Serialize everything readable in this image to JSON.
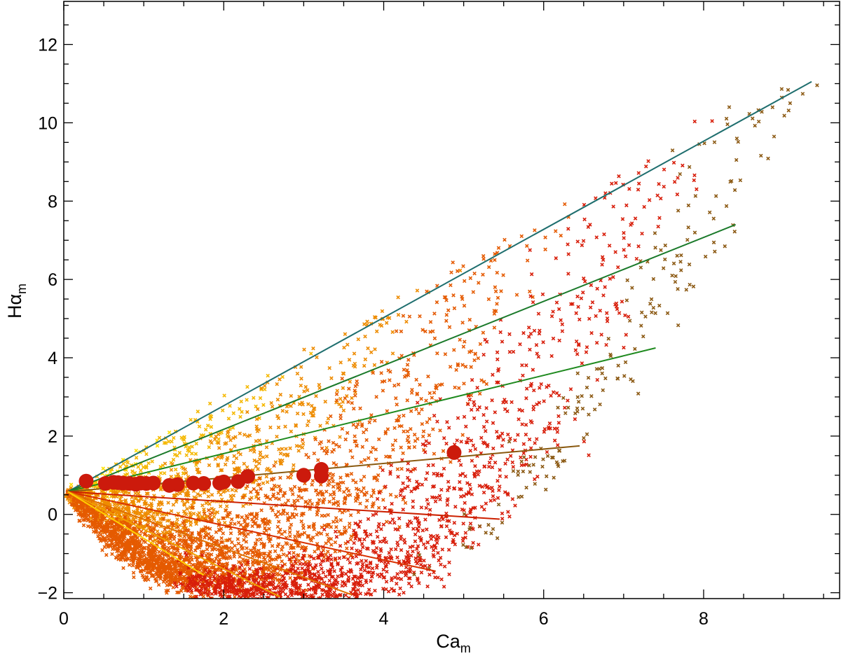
{
  "chart_data": {
    "type": "scatter",
    "xlabel": "Ca",
    "xlabel_sub": "m",
    "ylabel": "Hα",
    "ylabel_sub": "m",
    "xlim": [
      0,
      9.7
    ],
    "ylim": [
      -2.15,
      13.1
    ],
    "x_ticks": [
      0,
      2,
      4,
      6,
      8
    ],
    "x_tick_labels": [
      "0",
      "2",
      "4",
      "6",
      "8"
    ],
    "x_minor_step": 0.5,
    "y_ticks": [
      -2,
      0,
      2,
      4,
      6,
      8,
      10,
      12
    ],
    "y_tick_labels": [
      "−2",
      "0",
      "2",
      "4",
      "6",
      "8",
      "10",
      "12"
    ],
    "y_minor_step": 0.5,
    "grid": false,
    "legend": "none",
    "scatter_band_colors": [
      "#FFE000",
      "#F5B800",
      "#EE8C00",
      "#E55A00",
      "#D81E0A",
      "#8C5A14",
      "#238C23",
      "#0C8C3C",
      "#136E60"
    ],
    "fit_line_origin": [
      0.05,
      0.58
    ],
    "fit_lines": [
      {
        "x_end": 9.35,
        "y_end": 11.05,
        "color": "#1E6E6E"
      },
      {
        "x_end": 8.4,
        "y_end": 7.4,
        "color": "#1A7A2A"
      },
      {
        "x_end": 7.4,
        "y_end": 4.25,
        "color": "#1F8A1F"
      },
      {
        "x_end": 6.45,
        "y_end": 1.75,
        "color": "#8A5A10"
      },
      {
        "x_end": 5.45,
        "y_end": -0.12,
        "color": "#CC2000"
      },
      {
        "x_end": 4.65,
        "y_end": -1.45,
        "color": "#D83000"
      },
      {
        "x_end": 3.6,
        "y_end": -2.05,
        "color": "#E07000"
      },
      {
        "x_end": 2.7,
        "y_end": -2.1,
        "color": "#F0A000"
      },
      {
        "x_end": 1.75,
        "y_end": -1.55,
        "color": "#FFD000"
      }
    ],
    "marker_color": "#CC1A0C",
    "markers": [
      [
        0.28,
        0.85
      ],
      [
        0.52,
        0.79
      ],
      [
        0.62,
        0.82
      ],
      [
        0.68,
        0.81
      ],
      [
        0.74,
        0.8
      ],
      [
        0.82,
        0.79
      ],
      [
        0.9,
        0.77
      ],
      [
        0.96,
        0.8
      ],
      [
        1.03,
        0.79
      ],
      [
        1.12,
        0.8
      ],
      [
        1.32,
        0.74
      ],
      [
        1.42,
        0.76
      ],
      [
        1.62,
        0.8
      ],
      [
        1.75,
        0.79
      ],
      [
        1.95,
        0.8
      ],
      [
        2.0,
        0.83
      ],
      [
        2.18,
        0.84
      ],
      [
        2.3,
        0.97
      ],
      [
        3.0,
        1.0
      ],
      [
        3.22,
        1.15
      ],
      [
        3.22,
        0.98
      ],
      [
        4.88,
        1.58
      ]
    ]
  }
}
